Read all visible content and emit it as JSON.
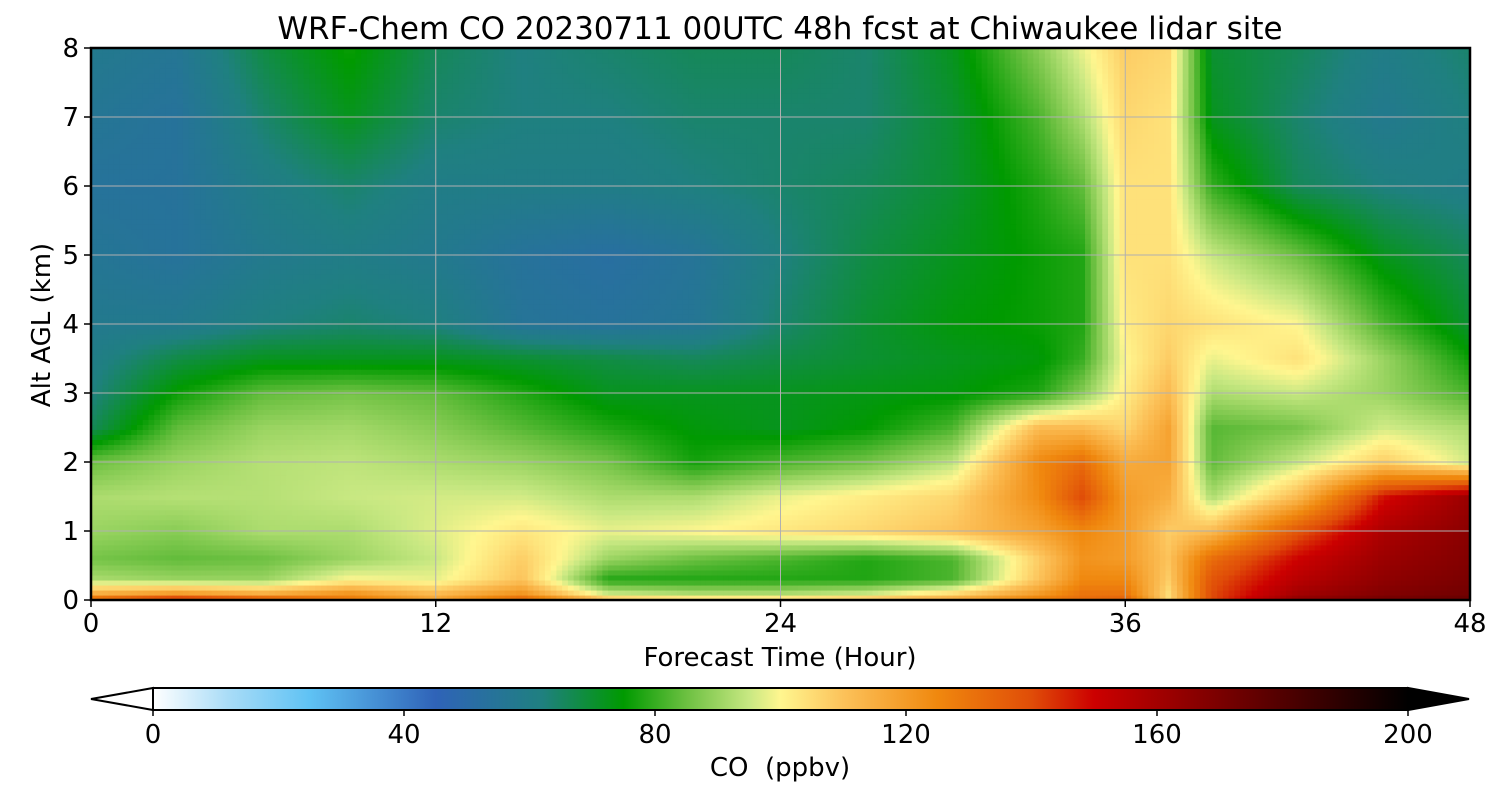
{
  "chart_data": {
    "type": "heatmap",
    "title": "WRF-Chem CO  20230711 00UTC 48h fcst at Chiwaukee lidar site",
    "xlabel": "Forecast Time (Hour)",
    "ylabel": "Alt AGL (km)",
    "xlim": [
      0,
      48
    ],
    "ylim": [
      0,
      8
    ],
    "xticks": [
      0,
      12,
      24,
      36,
      48
    ],
    "xtick_labels": [
      "0",
      "12",
      "24",
      "36",
      "48"
    ],
    "yticks": [
      0,
      1,
      2,
      3,
      4,
      5,
      6,
      7,
      8
    ],
    "ytick_labels": [
      "0",
      "1",
      "2",
      "3",
      "4",
      "5",
      "6",
      "7",
      "8"
    ],
    "grid": true,
    "colorbar": {
      "label": "CO  (ppbv)",
      "range": [
        0,
        200
      ],
      "ticks": [
        0,
        40,
        80,
        120,
        160,
        200
      ],
      "tick_labels": [
        "0",
        "40",
        "80",
        "120",
        "160",
        "200"
      ],
      "extend": "both",
      "orientation": "horizontal",
      "color_stops": [
        {
          "value": 0,
          "color": "#ffffff"
        },
        {
          "value": 12,
          "color": "#a9dcf7"
        },
        {
          "value": 25,
          "color": "#5fc2f4"
        },
        {
          "value": 45,
          "color": "#2f63b8"
        },
        {
          "value": 62,
          "color": "#1f8080"
        },
        {
          "value": 75,
          "color": "#009a00"
        },
        {
          "value": 85,
          "color": "#6cc041"
        },
        {
          "value": 95,
          "color": "#c8e882"
        },
        {
          "value": 100,
          "color": "#fff68f"
        },
        {
          "value": 110,
          "color": "#fcc25a"
        },
        {
          "value": 125,
          "color": "#f0880e"
        },
        {
          "value": 140,
          "color": "#e04d08"
        },
        {
          "value": 150,
          "color": "#cc0000"
        },
        {
          "value": 170,
          "color": "#7a0000"
        },
        {
          "value": 200,
          "color": "#000000"
        }
      ]
    },
    "x": [
      0,
      3,
      6,
      9,
      12,
      15,
      18,
      21,
      24,
      27,
      30,
      33,
      34.5,
      36,
      37.5,
      39,
      42,
      45,
      48
    ],
    "y": [
      0,
      0.1,
      0.3,
      0.6,
      1,
      1.5,
      2,
      2.5,
      3,
      3.5,
      4,
      5,
      6,
      7,
      8
    ],
    "z": [
      [
        135,
        150,
        140,
        130,
        118,
        135,
        112,
        108,
        108,
        112,
        118,
        128,
        132,
        135,
        105,
        140,
        165,
        172,
        175
      ],
      [
        115,
        120,
        115,
        122,
        112,
        122,
        95,
        92,
        92,
        95,
        105,
        120,
        130,
        130,
        105,
        140,
        160,
        168,
        172
      ],
      [
        92,
        90,
        90,
        100,
        98,
        110,
        78,
        78,
        78,
        78,
        82,
        110,
        125,
        125,
        108,
        138,
        155,
        165,
        170
      ],
      [
        86,
        84,
        85,
        90,
        95,
        108,
        90,
        85,
        82,
        78,
        82,
        108,
        122,
        120,
        110,
        132,
        150,
        162,
        168
      ],
      [
        90,
        88,
        92,
        92,
        97,
        103,
        98,
        100,
        103,
        106,
        110,
        118,
        125,
        120,
        108,
        112,
        138,
        158,
        166
      ],
      [
        92,
        93,
        93,
        95,
        96,
        96,
        92,
        92,
        98,
        102,
        106,
        124,
        140,
        120,
        115,
        92,
        112,
        148,
        162
      ],
      [
        85,
        90,
        93,
        94,
        92,
        90,
        86,
        77,
        82,
        86,
        94,
        125,
        132,
        116,
        118,
        84,
        95,
        108,
        96
      ],
      [
        66,
        84,
        90,
        91,
        88,
        83,
        78,
        74,
        72,
        75,
        82,
        112,
        112,
        106,
        118,
        83,
        86,
        96,
        92
      ],
      [
        62,
        76,
        84,
        86,
        84,
        78,
        72,
        72,
        72,
        73,
        74,
        78,
        88,
        102,
        112,
        92,
        95,
        90,
        82
      ],
      [
        60,
        68,
        72,
        72,
        72,
        70,
        68,
        66,
        68,
        70,
        72,
        74,
        80,
        100,
        108,
        98,
        104,
        90,
        76
      ],
      [
        58,
        58,
        62,
        64,
        62,
        55,
        54,
        56,
        64,
        70,
        74,
        76,
        78,
        102,
        106,
        104,
        100,
        82,
        70
      ],
      [
        56,
        54,
        58,
        60,
        58,
        54,
        52,
        55,
        62,
        68,
        72,
        76,
        78,
        104,
        104,
        95,
        85,
        72,
        66
      ],
      [
        54,
        54,
        60,
        64,
        60,
        60,
        60,
        62,
        64,
        66,
        70,
        78,
        84,
        104,
        104,
        80,
        66,
        62,
        60
      ],
      [
        56,
        54,
        64,
        72,
        64,
        62,
        62,
        64,
        64,
        64,
        70,
        82,
        92,
        106,
        104,
        72,
        64,
        58,
        62
      ],
      [
        58,
        56,
        68,
        76,
        66,
        62,
        64,
        66,
        66,
        64,
        72,
        88,
        98,
        108,
        106,
        70,
        66,
        60,
        64
      ]
    ]
  }
}
